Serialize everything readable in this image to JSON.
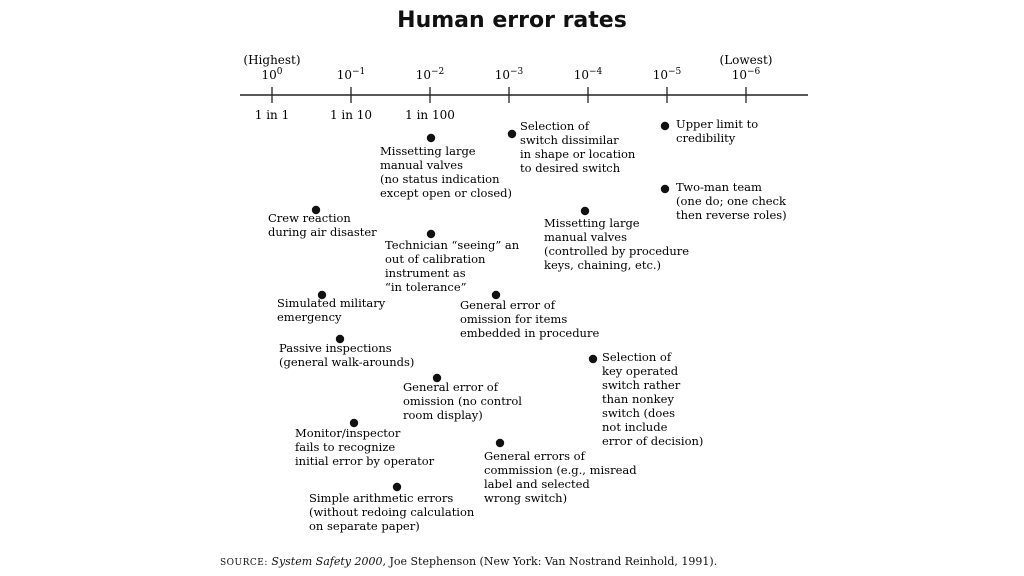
{
  "chart_data": {
    "type": "scatter",
    "title": "Human error rates",
    "x_scale": "log",
    "x_ticks": [
      {
        "value": 1,
        "exp": "0",
        "lower": "1 in 1"
      },
      {
        "value": 0.1,
        "exp": "−1",
        "lower": "1 in 10"
      },
      {
        "value": 0.01,
        "exp": "−2",
        "lower": "1 in 100"
      },
      {
        "value": 0.001,
        "exp": "−3",
        "lower": ""
      },
      {
        "value": 0.0001,
        "exp": "−4",
        "lower": ""
      },
      {
        "value": 1e-05,
        "exp": "−5",
        "lower": ""
      },
      {
        "value": 1e-06,
        "exp": "−6",
        "lower": ""
      }
    ],
    "tick_base": "10",
    "end_labels": {
      "left": "(Highest)",
      "right": "(Lowest)"
    },
    "points": [
      {
        "x": 0.01,
        "lines": [
          "Missetting large",
          "manual valves",
          "(no status indication",
          "except open or closed)"
        ]
      },
      {
        "x": 0.0012,
        "lines": [
          "Selection of",
          "switch dissimilar",
          "in shape or location",
          "to desired switch"
        ]
      },
      {
        "x": 1.2e-05,
        "lines": [
          "Upper limit to",
          "credibility"
        ]
      },
      {
        "x": 1.2e-05,
        "lines": [
          "Two-man team",
          "(one do; one check",
          "then reverse roles)"
        ]
      },
      {
        "x": 0.2,
        "lines": [
          "Crew reaction",
          "during air disaster"
        ]
      },
      {
        "x": 0.01,
        "lines": [
          "Technician “seeing” an",
          "out of calibration",
          "instrument as",
          "“in tolerance”"
        ]
      },
      {
        "x": 0.00015,
        "lines": [
          "Missetting large",
          "manual valves",
          "(controlled by procedure",
          "keys, chaining, etc.)"
        ]
      },
      {
        "x": 0.25,
        "lines": [
          "Simulated military",
          "emergency"
        ]
      },
      {
        "x": 0.0015,
        "lines": [
          "General error of",
          "omission for items",
          "embedded in procedure"
        ]
      },
      {
        "x": 0.2,
        "lines": [
          "Passive inspections",
          "(general walk-arounds)"
        ]
      },
      {
        "x": 0.0001,
        "lines": [
          "Selection of",
          "key operated",
          "switch rather",
          "than nonkey",
          "switch (does",
          "not include",
          "error of decision)"
        ]
      },
      {
        "x": 0.01,
        "lines": [
          "General error of",
          "omission (no control",
          "room display)"
        ]
      },
      {
        "x": 0.1,
        "lines": [
          "Monitor/inspector",
          "fails to recognize",
          "initial error by operator"
        ]
      },
      {
        "x": 0.0013,
        "lines": [
          "General errors of",
          "commission (e.g., misread",
          "label and selected",
          "wrong switch)"
        ]
      },
      {
        "x": 0.03,
        "lines": [
          "Simple arithmetic errors",
          "(without redoing calculation",
          "on separate paper)"
        ]
      }
    ],
    "grid": false,
    "legend": "none"
  },
  "source": {
    "prefix": "SOURCE:",
    "title": "System Safety 2000",
    "rest": ", Joe Stephenson (New York: Van Nostrand Reinhold, 1991)."
  }
}
